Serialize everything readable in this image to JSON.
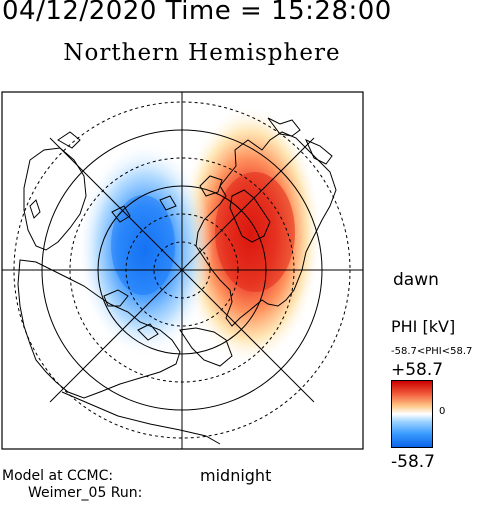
{
  "header": {
    "date_time": "04/12/2020 Time = 15:28:00",
    "hemisphere": "Northern Hemisphere"
  },
  "plot": {
    "dawn_label": "dawn",
    "midnight_label": "midnight",
    "colorbar": {
      "title": "PHI [kV]",
      "range_text": "-58.7<PHI<58.7",
      "max_label": "+58.7",
      "zero_label": "0",
      "min_label": "-58.7",
      "max_color": "#cc0000",
      "min_color": "#0a63e8"
    }
  },
  "footer": {
    "model_line1": "Model at CCMC:",
    "model_line2": "Weimer_05 Run:"
  },
  "chart_data": {
    "type": "heatmap",
    "quantity": "PHI",
    "unit": "kV",
    "min": -58.7,
    "max": 58.7,
    "projection": "polar, north",
    "cells": [
      {
        "mlt": 6,
        "value": 58.7
      },
      {
        "mlt": 18,
        "value": -58.7
      }
    ]
  }
}
